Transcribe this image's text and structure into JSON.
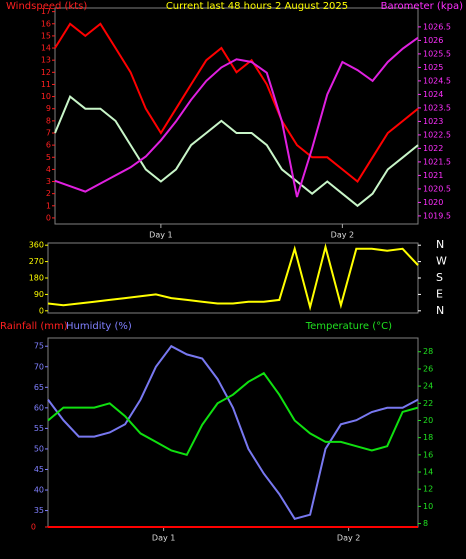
{
  "chart_data": [
    {
      "type": "line",
      "title": "Current last 48 hours 2 August 2025",
      "ylabel": "Windspeed (kts)",
      "y2label": "Barometer (kpa)",
      "axis_colors": {
        "y": "#ff2020",
        "y2": "#ff30ff"
      },
      "x": [
        0,
        2,
        4,
        6,
        8,
        10,
        12,
        14,
        16,
        18,
        20,
        22,
        24,
        26,
        28,
        30,
        32,
        34,
        36,
        38,
        40,
        42,
        44,
        46,
        48
      ],
      "xlim": [
        0,
        48
      ],
      "xticks": [
        {
          "value": 14,
          "label": "Day 1"
        },
        {
          "value": 38,
          "label": "Day 2"
        }
      ],
      "ylim": [
        -0.5,
        17.3
      ],
      "yticks": [
        0,
        1,
        2,
        3,
        4,
        5,
        6,
        7,
        8,
        9,
        10,
        11,
        12,
        13,
        14,
        15,
        16,
        17
      ],
      "y2lim": [
        1019.2,
        1027.2
      ],
      "y2ticks": [
        1019.5,
        1020,
        1020.5,
        1021,
        1021.5,
        1022,
        1022.5,
        1023,
        1023.5,
        1024,
        1024.5,
        1025,
        1025.5,
        1026,
        1026.5
      ],
      "series": [
        {
          "color": "#ff0000",
          "values": [
            14,
            16,
            15,
            16,
            14,
            12,
            9,
            7,
            9,
            11,
            13,
            14,
            12,
            13,
            11,
            8,
            6,
            5,
            5,
            4,
            3,
            5,
            7,
            8,
            9
          ]
        },
        {
          "color": "#c8f5c8",
          "values": [
            7,
            10,
            9,
            9,
            8,
            6,
            4,
            3,
            4,
            6,
            7,
            8,
            7,
            7,
            6,
            4,
            3,
            2,
            3,
            2,
            1,
            2,
            4,
            5,
            6
          ]
        },
        {
          "color": "#e020e0",
          "axis": "y2",
          "values": [
            1020.8,
            1020.6,
            1020.4,
            1020.7,
            1021,
            1021.3,
            1021.7,
            1022.3,
            1023,
            1023.8,
            1024.5,
            1025,
            1025.3,
            1025.2,
            1024.8,
            1023,
            1020.2,
            1022,
            1024,
            1025.2,
            1024.9,
            1024.5,
            1025.2,
            1025.7,
            1026.1
          ]
        }
      ]
    },
    {
      "type": "line",
      "axis_colors": {
        "y": "#ffff00",
        "y2": "#ffffff"
      },
      "x": [
        0,
        2,
        4,
        6,
        8,
        10,
        12,
        14,
        16,
        18,
        20,
        22,
        24,
        26,
        28,
        30,
        32,
        34,
        36,
        38,
        40,
        42,
        44,
        46,
        48
      ],
      "xlim": [
        0,
        48
      ],
      "ylim": [
        -12,
        372
      ],
      "yticks": [
        0,
        90,
        180,
        270,
        360
      ],
      "y2lim": [
        -12,
        372
      ],
      "y2ticks": [
        {
          "value": 0,
          "label": "N"
        },
        {
          "value": 90,
          "label": "E"
        },
        {
          "value": 180,
          "label": "S"
        },
        {
          "value": 270,
          "label": "W"
        },
        {
          "value": 360,
          "label": "N"
        }
      ],
      "series": [
        {
          "color": "#ffff00",
          "values": [
            40,
            30,
            40,
            50,
            60,
            70,
            80,
            90,
            70,
            60,
            50,
            40,
            40,
            50,
            50,
            60,
            340,
            20,
            350,
            30,
            340,
            340,
            330,
            340,
            250
          ]
        }
      ]
    },
    {
      "type": "line",
      "y3label": "Rainfall (mm)",
      "ylabel": "Humidity (%)",
      "y2label": "Temperature (°C)",
      "axis_colors": {
        "y": "#8080ff",
        "y2": "#20e020",
        "y3": "#ff2020"
      },
      "x": [
        0,
        2,
        4,
        6,
        8,
        10,
        12,
        14,
        16,
        18,
        20,
        22,
        24,
        26,
        28,
        30,
        32,
        34,
        36,
        38,
        40,
        42,
        44,
        46,
        48
      ],
      "xlim": [
        0,
        48
      ],
      "xticks": [
        {
          "value": 15,
          "label": "Day 1"
        },
        {
          "value": 39,
          "label": "Day 2"
        }
      ],
      "ylim": [
        31,
        77
      ],
      "yticks": [
        35,
        40,
        45,
        50,
        55,
        60,
        65,
        70,
        75
      ],
      "y2lim": [
        7.6,
        29.6
      ],
      "y2ticks": [
        8,
        10,
        12,
        14,
        16,
        18,
        20,
        22,
        24,
        26,
        28
      ],
      "y3lim": [
        0,
        10
      ],
      "y3ticks": [
        0
      ],
      "series": [
        {
          "color": "#ff0000",
          "axis": "y3",
          "values": [
            0,
            0,
            0,
            0,
            0,
            0,
            0,
            0,
            0,
            0,
            0,
            0,
            0,
            0,
            0,
            0,
            0,
            0,
            0,
            0,
            0,
            0,
            0,
            0,
            0
          ]
        },
        {
          "color": "#7878f0",
          "values": [
            62,
            57,
            53,
            53,
            54,
            56,
            62,
            70,
            75,
            73,
            72,
            67,
            60,
            50,
            44,
            39,
            33,
            34,
            50,
            56,
            57,
            59,
            60,
            60,
            62
          ]
        },
        {
          "color": "#10e010",
          "axis": "y2",
          "values": [
            20,
            21.5,
            21.5,
            21.5,
            22,
            20.5,
            18.5,
            17.5,
            16.5,
            16,
            19.5,
            22,
            23,
            24.5,
            25.5,
            23,
            20,
            18.5,
            17.5,
            17.5,
            17,
            16.5,
            17,
            21,
            21.5
          ]
        }
      ]
    }
  ]
}
